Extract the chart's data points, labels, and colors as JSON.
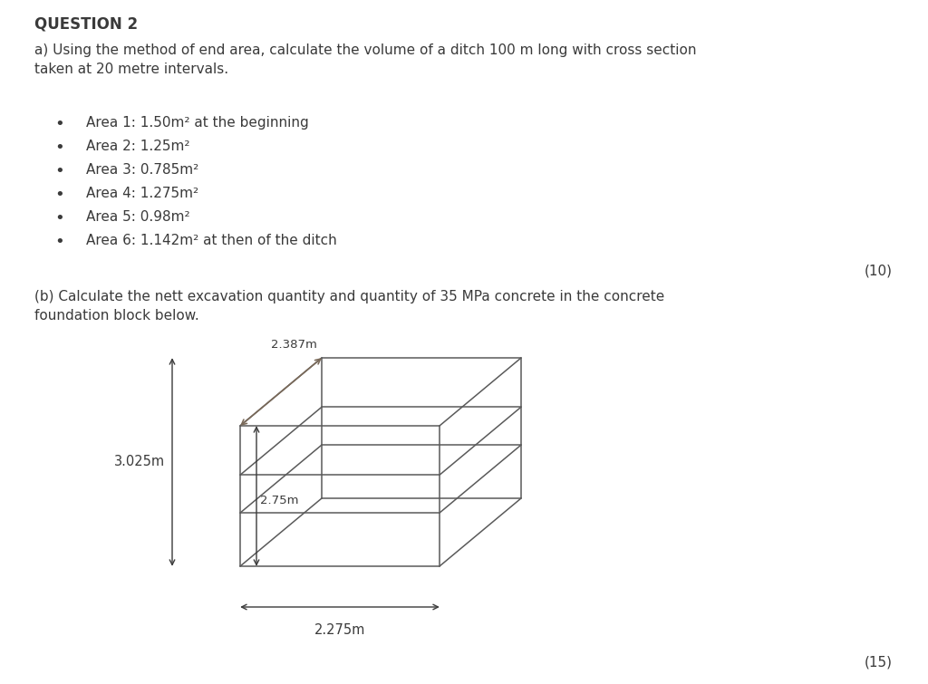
{
  "bg_color": "#ffffff",
  "text_color": "#3a3a3a",
  "title": "QUESTION 2",
  "para_a": "a) Using the method of end area, calculate the volume of a ditch 100 m long with cross section\ntaken at 20 metre intervals.",
  "bullets": [
    "Area 1: 1.50m² at the beginning",
    "Area 2: 1.25m²",
    "Area 3: 0.785m²",
    "Area 4: 1.275m²",
    "Area 5: 0.98m²",
    "Area 6: 1.142m² at then of the ditch"
  ],
  "mark_a": "(10)",
  "para_b": "(b) Calculate the nett excavation quantity and quantity of 35 MPa concrete in the concrete\nfoundation block below.",
  "mark_b": "(15)",
  "dim_depth": "2.387m",
  "dim_height_total": "3.025m",
  "dim_height_inner": "2.75m",
  "dim_width": "2.275m"
}
